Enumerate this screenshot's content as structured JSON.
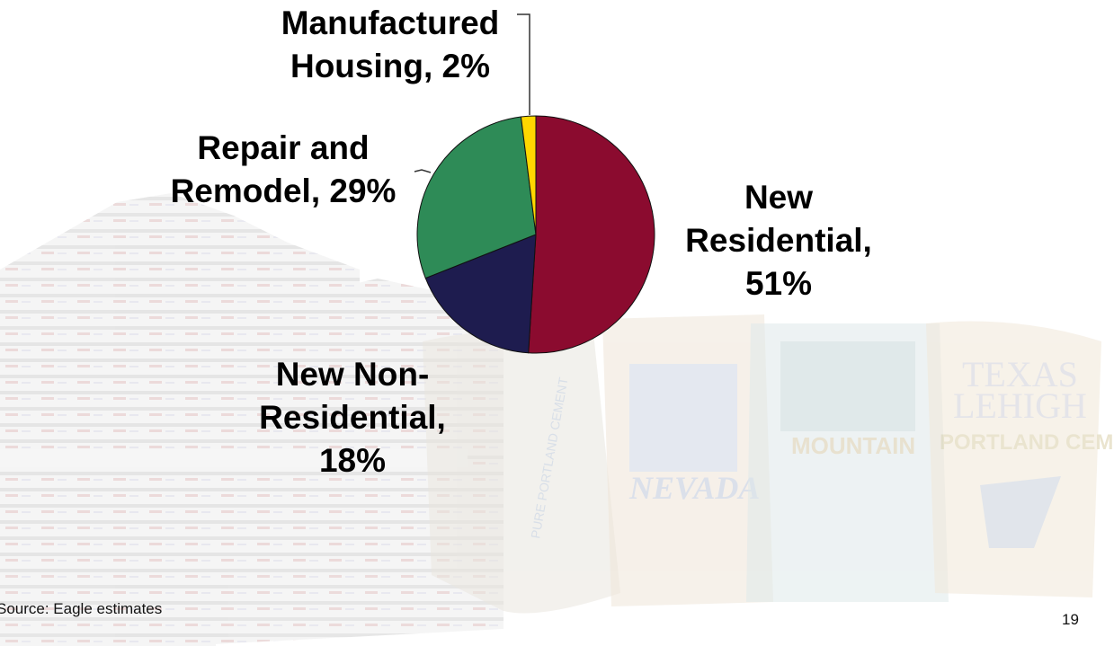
{
  "chart_data": {
    "type": "pie",
    "categories": [
      "New Residential",
      "New Non-Residential",
      "Repair and Remodel",
      "Manufactured Housing"
    ],
    "values": [
      51,
      18,
      29,
      2
    ],
    "units": "%",
    "colors": [
      "#8b0b2f",
      "#1e1c4f",
      "#2e8b57",
      "#ffd700"
    ],
    "labels": [
      {
        "lines": [
          "New",
          "Residential,",
          "51%"
        ]
      },
      {
        "lines": [
          "New Non-",
          "Residential,",
          "18%"
        ]
      },
      {
        "lines": [
          "Repair and",
          "Remodel, 29%"
        ]
      },
      {
        "lines": [
          "Manufactured",
          "Housing, 2%"
        ]
      }
    ]
  },
  "footer": {
    "source": "Source: Eagle estimates",
    "page_number": "19"
  },
  "background": {
    "bag_texts": {
      "bag1": "PURE PORTLAND CEMENT",
      "bag2": "NEVADA",
      "bag3": "MOUNTAIN",
      "bag4a": "TEXAS",
      "bag4b": "LEHIGH",
      "bag4c": "PORTLAND CEMENT"
    }
  }
}
